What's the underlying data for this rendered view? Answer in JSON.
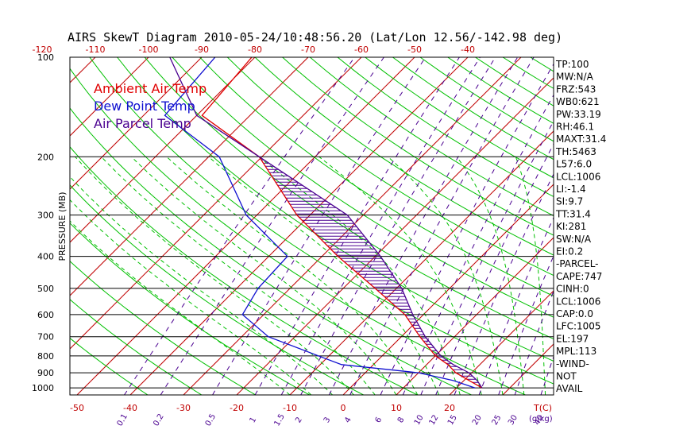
{
  "chart_data": {
    "type": "line",
    "title": "AIRS SkewT Diagram 2010-05-24/10:48:56.20 (Lat/Lon 12.56/-142.98 deg)",
    "ylabel": "PRESSURE (MB)",
    "xlabel_units": "T(C)",
    "mixing_units": "(g/kg)",
    "pressure_ticks": [
      "100",
      "200",
      "300",
      "400",
      "500",
      "600",
      "700",
      "800",
      "900",
      "1000"
    ],
    "top_temperature_ticks": [
      "-120",
      "-110",
      "-100",
      "-90",
      "-80",
      "-70",
      "-60",
      "-50",
      "-40"
    ],
    "bottom_temperature_ticks": [
      "-50",
      "-40",
      "-30",
      "-20",
      "-10",
      "0",
      "10",
      "20"
    ],
    "mixing_ratio_ticks": [
      "0.1",
      "0.2",
      "0.5",
      "1",
      "1.5",
      "2",
      "3",
      "4",
      "6",
      "8",
      "10",
      "12",
      "15",
      "20",
      "25",
      "30",
      "40"
    ],
    "legend": [
      {
        "label": "Ambient Air Temp",
        "color": "#e00000"
      },
      {
        "label": "Dew Point Temp",
        "color": "#1010d0"
      },
      {
        "label": "Air Parcel Temp",
        "color": "#4a0090"
      }
    ],
    "series": [
      {
        "name": "Ambient Air Temp",
        "color": "#e00000",
        "points": [
          [
            100,
            -80.6
          ],
          [
            150,
            -79
          ],
          [
            200,
            -60.5
          ],
          [
            300,
            -42.5
          ],
          [
            400,
            -27
          ],
          [
            500,
            -14
          ],
          [
            600,
            -3.5
          ],
          [
            700,
            3.5
          ],
          [
            800,
            10
          ],
          [
            850,
            14
          ],
          [
            900,
            17
          ],
          [
            950,
            21
          ],
          [
            1000,
            24.8
          ]
        ]
      },
      {
        "name": "Dew Point Temp",
        "color": "#1010d0",
        "points": [
          [
            100,
            -87.5
          ],
          [
            150,
            -86
          ],
          [
            200,
            -68
          ],
          [
            300,
            -52
          ],
          [
            400,
            -36.5
          ],
          [
            500,
            -36
          ],
          [
            600,
            -34
          ],
          [
            700,
            -25
          ],
          [
            800,
            -12
          ],
          [
            850,
            -6
          ],
          [
            900,
            10
          ],
          [
            950,
            18
          ],
          [
            1000,
            23.5
          ]
        ]
      },
      {
        "name": "Air Parcel Temp",
        "color": "#4a0090",
        "points": [
          [
            100,
            -96
          ],
          [
            150,
            -80
          ],
          [
            200,
            -60.5
          ],
          [
            300,
            -33
          ],
          [
            400,
            -19
          ],
          [
            500,
            -9
          ],
          [
            600,
            -2
          ],
          [
            700,
            4.5
          ],
          [
            800,
            11
          ],
          [
            850,
            15
          ],
          [
            900,
            19.5
          ],
          [
            950,
            22.5
          ],
          [
            1000,
            24.8
          ]
        ]
      }
    ]
  },
  "stats": [
    "TP:100",
    "MW:N/A",
    "FRZ:543",
    "WB0:621",
    "PW:33.19",
    "RH:46.1",
    "MAXT:31.4",
    "TH:5463",
    "L57:6.0",
    "LCL:1006",
    "LI:-1.4",
    "SI:9.7",
    "TT:31.4",
    "KI:281",
    "SW:N/A",
    "EI:0.2",
    "-PARCEL-",
    "CAPE:747",
    "CINH:0",
    "LCL:1006",
    "CAP:0.0",
    "LFC:1005",
    "EL:197",
    "MPL:113",
    "-WIND-",
    "NOT",
    "AVAIL"
  ],
  "colors": {
    "isotherm": "#c00000",
    "dry_adiabat": "#00c000",
    "moist_adiabat": "#00c000",
    "mixing_ratio": "#4a0090",
    "isobar": "#000000",
    "cape_hatch": "#4a0090"
  }
}
